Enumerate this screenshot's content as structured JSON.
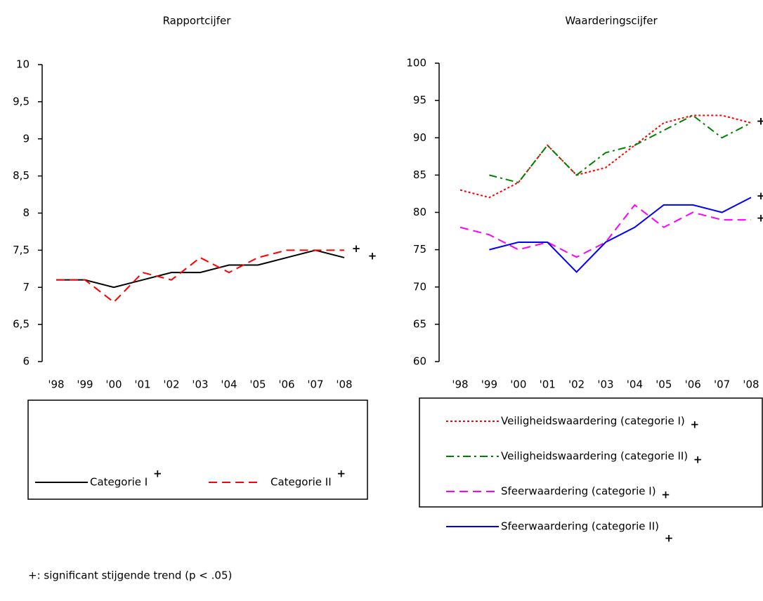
{
  "chart_data": [
    {
      "type": "line",
      "title": "Rapportcijfer",
      "categories": [
        "'98",
        "'99",
        "'00",
        "'01",
        "'02",
        "'03",
        "'04",
        "'05",
        "'06",
        "'07",
        "'08"
      ],
      "ylim": [
        6,
        10
      ],
      "yticks": [
        6,
        {
          "value": 6.5,
          "label": "6,5"
        },
        7,
        {
          "value": 7.5,
          "label": "7,5"
        },
        8,
        {
          "value": 8.5,
          "label": "8,5"
        },
        9,
        {
          "value": 9.5,
          "label": "9,5"
        },
        10
      ],
      "significance_mark": "+",
      "legend_layout": "horizontal",
      "series": [
        {
          "name": "Categorie I",
          "color": "#000000",
          "dash": "solid",
          "significant": true,
          "values": [
            7.1,
            7.1,
            7.0,
            7.1,
            7.2,
            7.2,
            7.3,
            7.3,
            7.4,
            7.5,
            7.4
          ]
        },
        {
          "name": "Categorie II",
          "color": "#ff0000",
          "dash": "dashed",
          "significant": true,
          "values": [
            7.1,
            7.1,
            6.8,
            7.2,
            7.1,
            7.4,
            7.2,
            7.4,
            7.5,
            7.5,
            7.5
          ]
        }
      ]
    },
    {
      "type": "line",
      "title": "Waarderingscijfer",
      "categories": [
        "'98",
        "'99",
        "'00",
        "'01",
        "'02",
        "'03",
        "'04",
        "'05",
        "'06",
        "'07",
        "'08"
      ],
      "ylim": [
        60,
        100
      ],
      "yticks": [
        60,
        65,
        70,
        75,
        80,
        85,
        90,
        95,
        100
      ],
      "significance_mark": "+",
      "legend_layout": "vertical",
      "series": [
        {
          "name": "Veiligheidswaardering (categorie I)",
          "color": "#ff0000",
          "dash": "dotted",
          "significant": true,
          "values": [
            83,
            82,
            84,
            89,
            85,
            86,
            89,
            92,
            93,
            93,
            92
          ]
        },
        {
          "name": "Veiligheidswaardering (categorie II)",
          "color": "#008000",
          "dash": "dashdot",
          "significant": true,
          "values": [
            null,
            85,
            84,
            89,
            85,
            88,
            89,
            91,
            93,
            90,
            92
          ]
        },
        {
          "name": "Sfeerwaardering (categorie I)",
          "color": "#ff00ff",
          "dash": "dashed",
          "significant": true,
          "values": [
            78,
            77,
            75,
            76,
            74,
            76,
            81,
            78,
            80,
            79,
            79
          ]
        },
        {
          "name": "Sfeerwaardering (categorie II)",
          "color": "#0000ff",
          "dash": "solid",
          "significant": true,
          "values": [
            null,
            75,
            76,
            76,
            72,
            76,
            78,
            81,
            81,
            80,
            82
          ]
        }
      ]
    }
  ],
  "footnote": "+: significant stijgende trend (p < .05)"
}
